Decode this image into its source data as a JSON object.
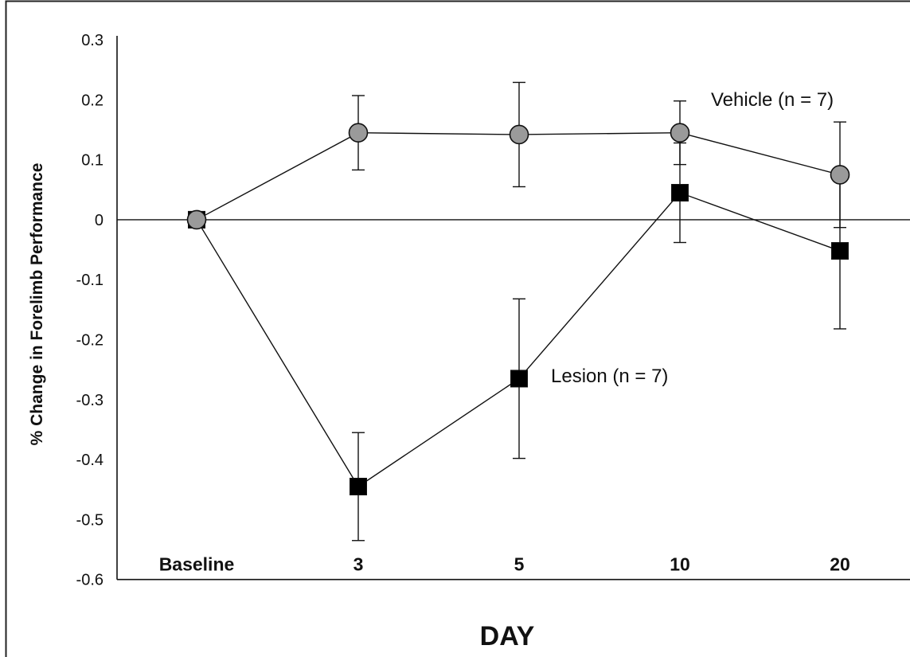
{
  "chart_data": {
    "type": "line",
    "categories": [
      "Baseline",
      "3",
      "5",
      "10",
      "20"
    ],
    "xlabel": "DAY",
    "ylabel": "% Change in Forelimb Performance",
    "ylim": [
      -0.6,
      0.3
    ],
    "yticks": [
      "0.3",
      "0.2",
      "0.1",
      "0",
      "-0.1",
      "-0.2",
      "-0.3",
      "-0.4",
      "-0.5",
      "-0.6"
    ],
    "grid": false,
    "zero_line": true,
    "series": [
      {
        "name": "Vehicle (n = 7)",
        "marker": "circle",
        "color": "#9a9a9a",
        "values": [
          0,
          0.145,
          0.142,
          0.145,
          0.075
        ],
        "error": [
          0,
          0.062,
          0.087,
          0.053,
          0.088
        ]
      },
      {
        "name": "Lesion (n = 7)",
        "marker": "square",
        "color": "#000000",
        "values": [
          0,
          -0.445,
          -0.265,
          0.045,
          -0.052
        ],
        "error": [
          0,
          0.09,
          0.133,
          0.083,
          0.13
        ]
      }
    ]
  }
}
